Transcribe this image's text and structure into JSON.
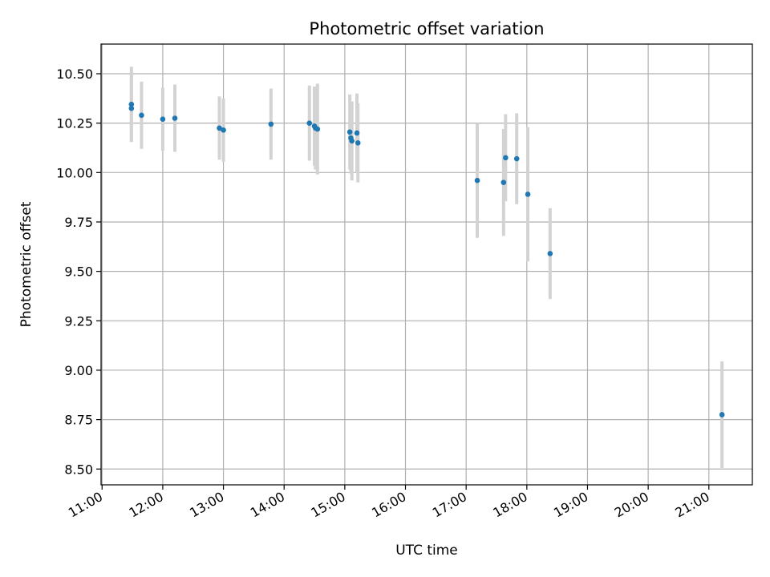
{
  "chart_data": {
    "type": "scatter",
    "title": "Photometric offset variation",
    "xlabel": "UTC time",
    "ylabel": "Photometric offset",
    "xlim": [
      "10:59",
      "21:43"
    ],
    "ylim": [
      8.42,
      10.65
    ],
    "grid": true,
    "colors": {
      "point": "#1f77b4",
      "errorbar": "#d3d3d3",
      "grid": "#b0b0b0"
    },
    "x_ticks": [
      "11:00",
      "12:00",
      "13:00",
      "14:00",
      "15:00",
      "16:00",
      "17:00",
      "18:00",
      "19:00",
      "20:00",
      "21:00"
    ],
    "y_ticks": [
      "8.50",
      "8.75",
      "9.00",
      "9.25",
      "9.50",
      "9.75",
      "10.00",
      "10.25",
      "10.50"
    ],
    "points": [
      {
        "x": "11:29",
        "y": 10.345,
        "err": 0.19
      },
      {
        "x": "11:29",
        "y": 10.325,
        "err": 0.17
      },
      {
        "x": "11:39",
        "y": 10.29,
        "err": 0.17
      },
      {
        "x": "12:00",
        "y": 10.27,
        "err": 0.16
      },
      {
        "x": "12:12",
        "y": 10.275,
        "err": 0.17
      },
      {
        "x": "12:56",
        "y": 10.225,
        "err": 0.16
      },
      {
        "x": "13:00",
        "y": 10.215,
        "err": 0.16
      },
      {
        "x": "13:47",
        "y": 10.245,
        "err": 0.18
      },
      {
        "x": "14:25",
        "y": 10.25,
        "err": 0.19
      },
      {
        "x": "14:30",
        "y": 10.235,
        "err": 0.2
      },
      {
        "x": "14:31",
        "y": 10.225,
        "err": 0.21
      },
      {
        "x": "14:33",
        "y": 10.22,
        "err": 0.23
      },
      {
        "x": "15:05",
        "y": 10.205,
        "err": 0.19
      },
      {
        "x": "15:06",
        "y": 10.175,
        "err": 0.18
      },
      {
        "x": "15:07",
        "y": 10.16,
        "err": 0.2
      },
      {
        "x": "15:12",
        "y": 10.2,
        "err": 0.2
      },
      {
        "x": "15:13",
        "y": 10.15,
        "err": 0.2
      },
      {
        "x": "17:11",
        "y": 9.96,
        "err": 0.29
      },
      {
        "x": "17:37",
        "y": 9.95,
        "err": 0.27
      },
      {
        "x": "17:39",
        "y": 10.075,
        "err": 0.22
      },
      {
        "x": "17:50",
        "y": 10.07,
        "err": 0.23
      },
      {
        "x": "18:01",
        "y": 9.89,
        "err": 0.34
      },
      {
        "x": "18:23",
        "y": 9.59,
        "err": 0.23
      },
      {
        "x": "21:13",
        "y": 8.775,
        "err": 0.27
      }
    ]
  }
}
